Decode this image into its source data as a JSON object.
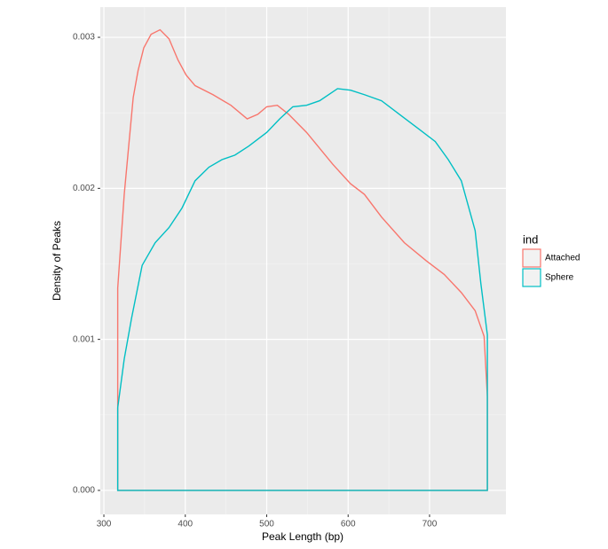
{
  "chart_data": {
    "type": "line",
    "x_label": "Peak Length (bp)",
    "y_label": "Density of Peaks",
    "legend_title": "ind",
    "legend_position": "right",
    "grid": true,
    "xlim": [
      295.6,
      793.8
    ],
    "ylim": [
      -0.000159,
      0.0032
    ],
    "xticks": [
      300,
      400,
      500,
      600,
      700
    ],
    "yticks": [
      {
        "value": 0,
        "label": "0.000"
      },
      {
        "value": 0.001,
        "label": "0.001"
      },
      {
        "value": 0.002,
        "label": "0.002"
      },
      {
        "value": 0.003,
        "label": "0.003"
      }
    ],
    "series": [
      {
        "name": "Attached",
        "color": "#F8766D",
        "x": [
          317,
          317,
          325,
          331,
          336,
          342,
          349,
          358,
          369,
          380,
          391,
          401,
          412,
          434,
          456,
          476,
          489,
          500,
          513,
          527,
          549,
          581,
          603,
          620,
          641,
          669,
          696,
          718,
          739,
          756,
          767,
          771,
          771
        ],
        "values": [
          0,
          0.00134,
          0.00196,
          0.00231,
          0.0026,
          0.00278,
          0.00293,
          0.00302,
          0.00305,
          0.00299,
          0.00285,
          0.00275,
          0.00268,
          0.00262,
          0.00255,
          0.00246,
          0.00249,
          0.00254,
          0.00255,
          0.00249,
          0.00237,
          0.00216,
          0.00203,
          0.00196,
          0.00181,
          0.00164,
          0.00152,
          0.00143,
          0.00131,
          0.00119,
          0.00102,
          0.00062,
          0
        ]
      },
      {
        "name": "Sphere",
        "color": "#00BFC4",
        "x": [
          317,
          317,
          325,
          334,
          347,
          363,
          380,
          396,
          412,
          429,
          445,
          461,
          478,
          500,
          516,
          532,
          549,
          565,
          587,
          603,
          620,
          641,
          663,
          685,
          707,
          723,
          739,
          756,
          763,
          771,
          771
        ],
        "values": [
          0,
          0.000547,
          0.00087,
          0.00114,
          0.00149,
          0.00164,
          0.00174,
          0.00187,
          0.00205,
          0.00214,
          0.00219,
          0.00222,
          0.00228,
          0.00237,
          0.00246,
          0.00254,
          0.00255,
          0.00258,
          0.00266,
          0.00265,
          0.00262,
          0.00258,
          0.00249,
          0.0024,
          0.00231,
          0.00219,
          0.00205,
          0.00172,
          0.00137,
          0.00103,
          0
        ]
      }
    ]
  }
}
